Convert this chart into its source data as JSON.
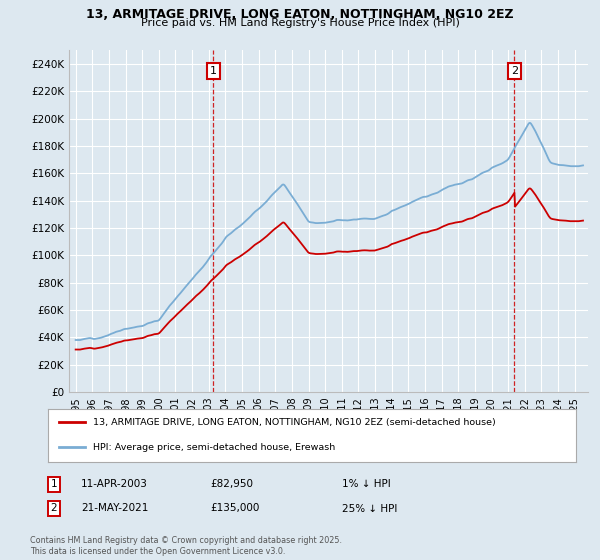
{
  "title_line1": "13, ARMITAGE DRIVE, LONG EATON, NOTTINGHAM, NG10 2EZ",
  "title_line2": "Price paid vs. HM Land Registry's House Price Index (HPI)",
  "legend_label_red": "13, ARMITAGE DRIVE, LONG EATON, NOTTINGHAM, NG10 2EZ (semi-detached house)",
  "legend_label_blue": "HPI: Average price, semi-detached house, Erewash",
  "annotation1_label": "1",
  "annotation1_date": "11-APR-2003",
  "annotation1_price": "£82,950",
  "annotation1_text": "1% ↓ HPI",
  "annotation2_label": "2",
  "annotation2_date": "21-MAY-2021",
  "annotation2_price": "£135,000",
  "annotation2_text": "25% ↓ HPI",
  "footnote": "Contains HM Land Registry data © Crown copyright and database right 2025.\nThis data is licensed under the Open Government Licence v3.0.",
  "sale1_year": 2003.28,
  "sale1_value": 82950,
  "sale2_year": 2021.38,
  "sale2_value": 135000,
  "ylim": [
    0,
    250000
  ],
  "yticks": [
    0,
    20000,
    40000,
    60000,
    80000,
    100000,
    120000,
    140000,
    160000,
    180000,
    200000,
    220000,
    240000
  ],
  "bg_color": "#dde8f0",
  "plot_bg_color": "#dde8f0",
  "grid_color": "#ffffff",
  "red_color": "#cc0000",
  "blue_color": "#7aadd4",
  "dashed_color": "#cc0000"
}
